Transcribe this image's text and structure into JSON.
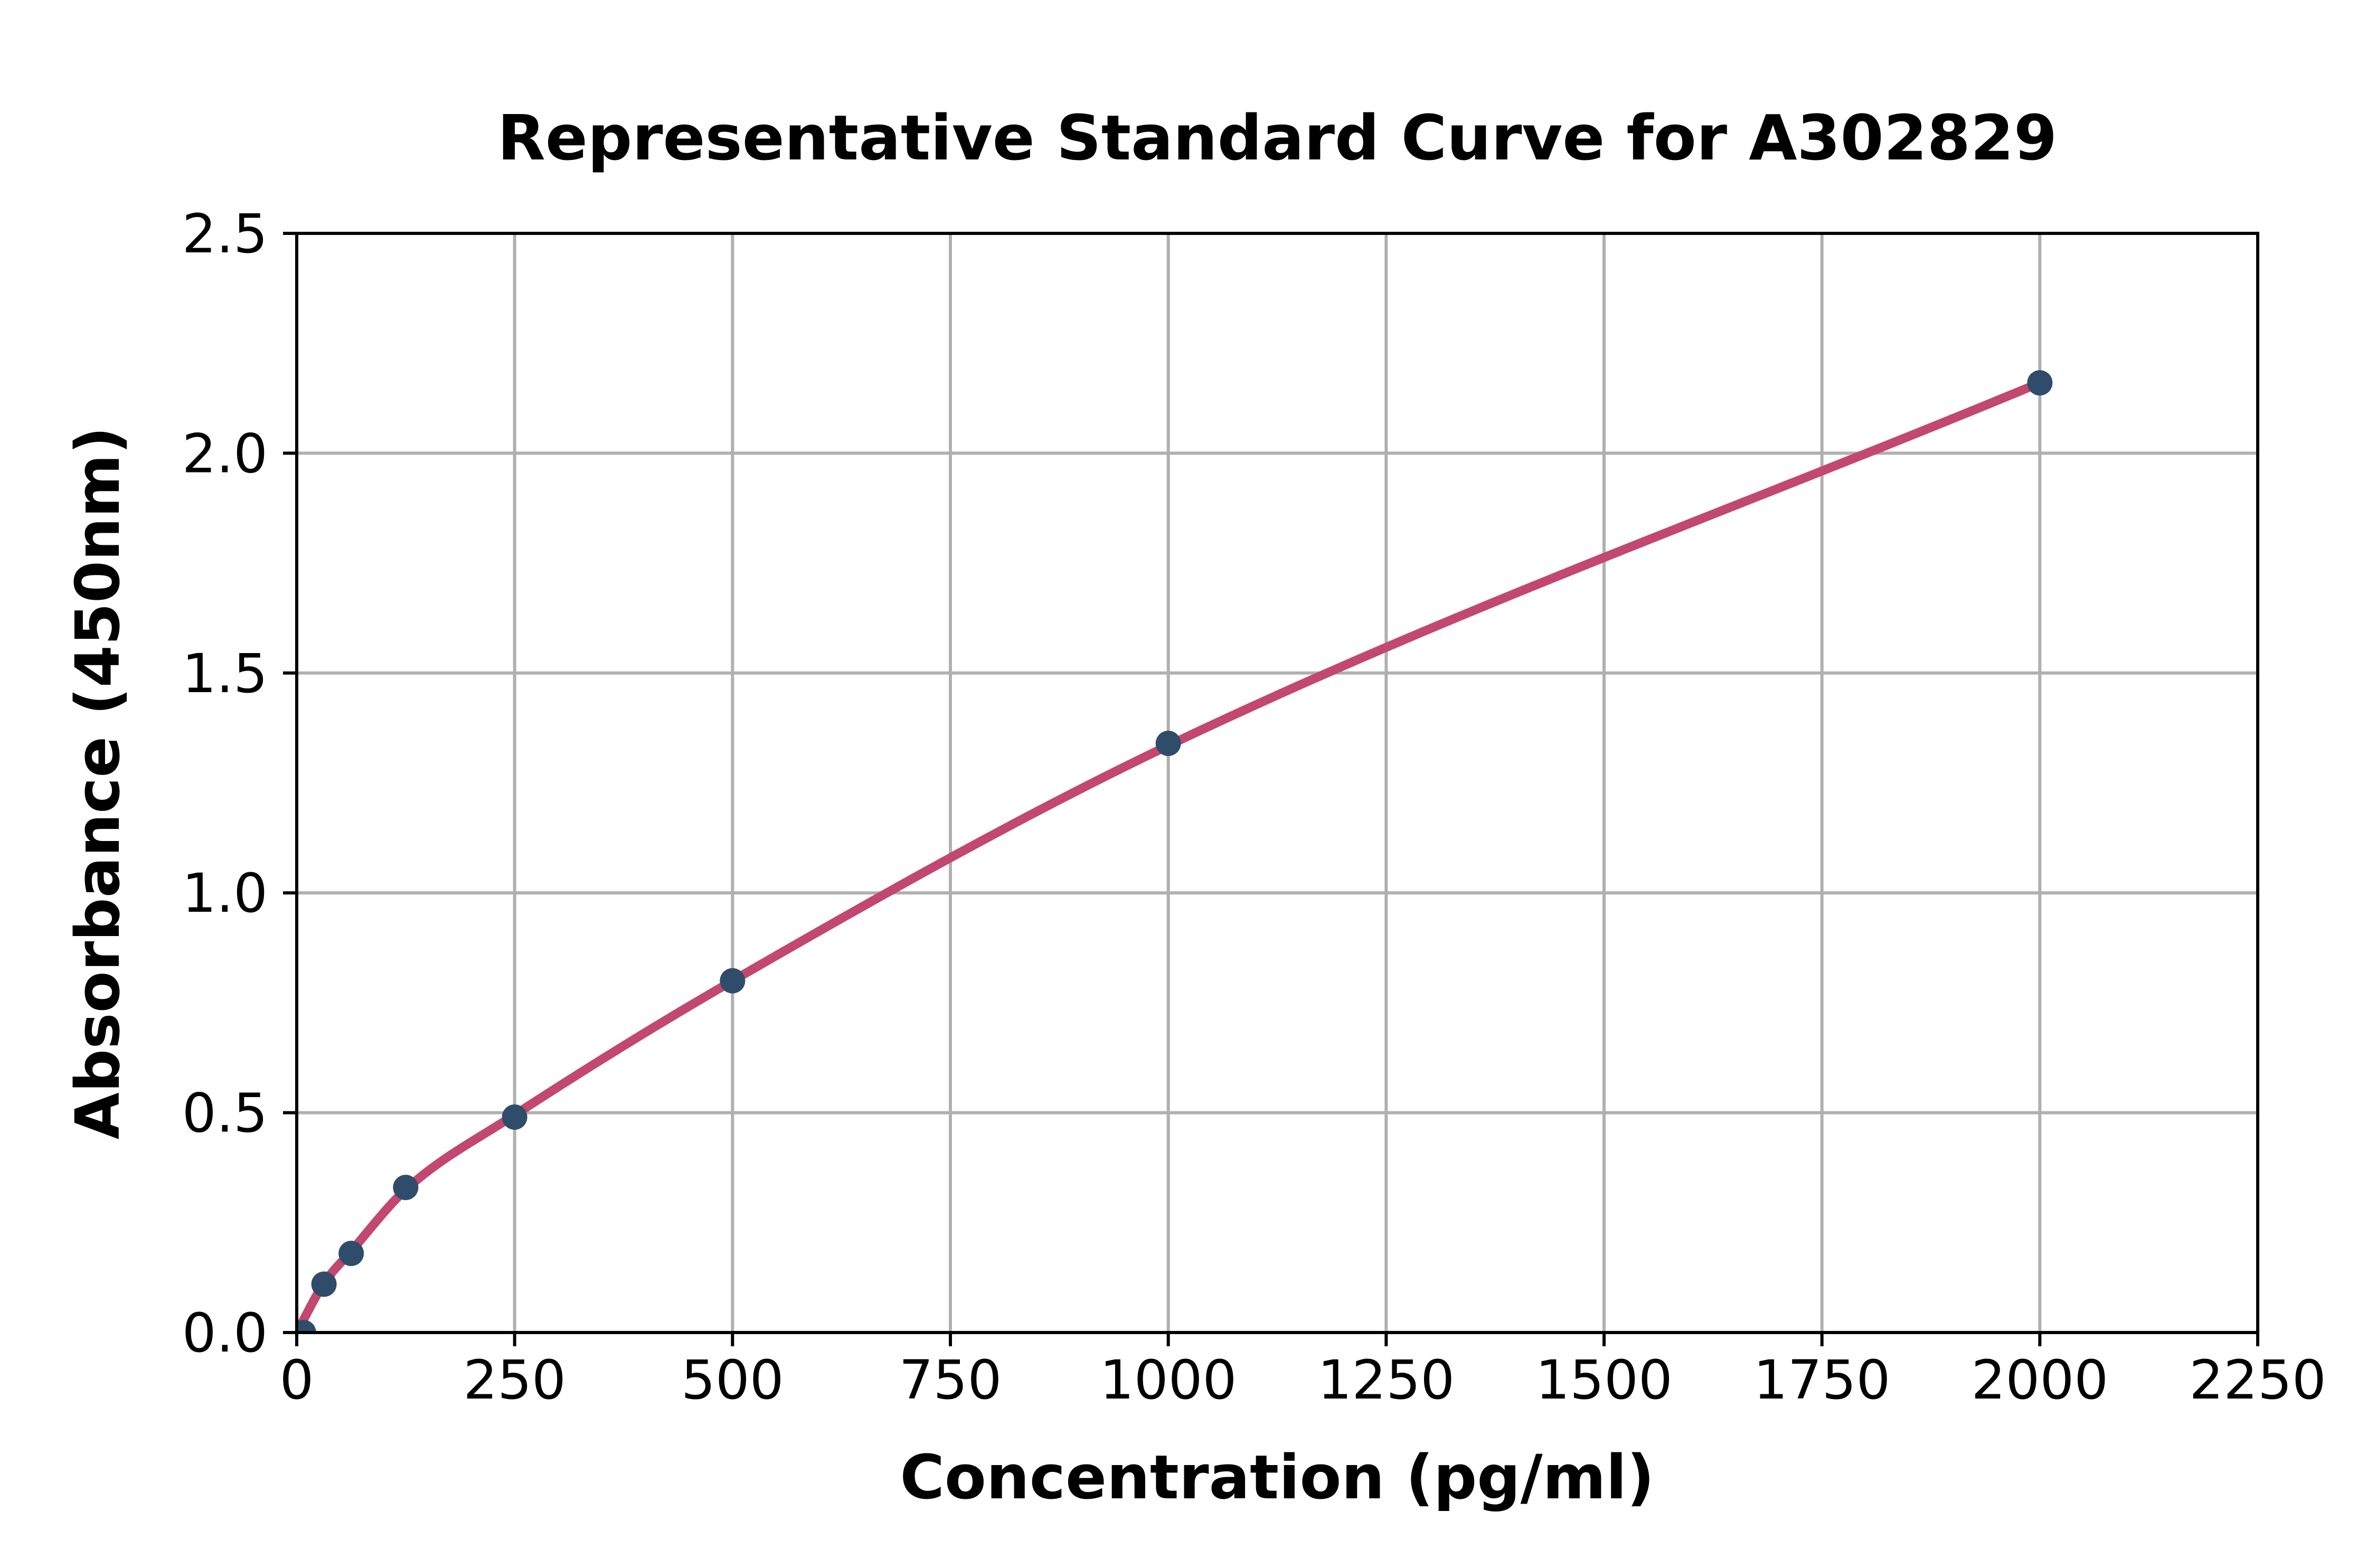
{
  "title": "Representative Standard Curve for A302829",
  "colors": {
    "curve": "#C24870",
    "marker": "#2F4D6B",
    "grid": "#B0B0B0",
    "axis": "#000000",
    "background": "#FFFFFF"
  },
  "chart_data": {
    "type": "scatter",
    "title": "Representative Standard Curve for A302829",
    "xlabel": "Concentration (pg/ml)",
    "ylabel": "Absorbance (450nm)",
    "xlim": [
      0,
      2250
    ],
    "ylim": [
      0,
      2.5
    ],
    "x_ticks": [
      0,
      250,
      500,
      750,
      1000,
      1250,
      1500,
      1750,
      2000,
      2250
    ],
    "y_ticks": [
      "0.0",
      "0.5",
      "1.0",
      "1.5",
      "2.0",
      "2.5"
    ],
    "grid": true,
    "legend": false,
    "points": [
      {
        "x": 7.8,
        "y": 0.0
      },
      {
        "x": 31.25,
        "y": 0.11
      },
      {
        "x": 62.5,
        "y": 0.18
      },
      {
        "x": 125,
        "y": 0.33
      },
      {
        "x": 250,
        "y": 0.49
      },
      {
        "x": 500,
        "y": 0.8
      },
      {
        "x": 1000,
        "y": 1.34
      },
      {
        "x": 2000,
        "y": 2.16
      }
    ],
    "fit_curve": {
      "anchors": [
        {
          "x": 0,
          "y": 0.0
        },
        {
          "x": 31.25,
          "y": 0.112
        },
        {
          "x": 62.5,
          "y": 0.185
        },
        {
          "x": 125,
          "y": 0.325
        },
        {
          "x": 250,
          "y": 0.495
        },
        {
          "x": 500,
          "y": 0.8
        },
        {
          "x": 1000,
          "y": 1.335
        },
        {
          "x": 2000,
          "y": 2.16
        }
      ]
    }
  }
}
